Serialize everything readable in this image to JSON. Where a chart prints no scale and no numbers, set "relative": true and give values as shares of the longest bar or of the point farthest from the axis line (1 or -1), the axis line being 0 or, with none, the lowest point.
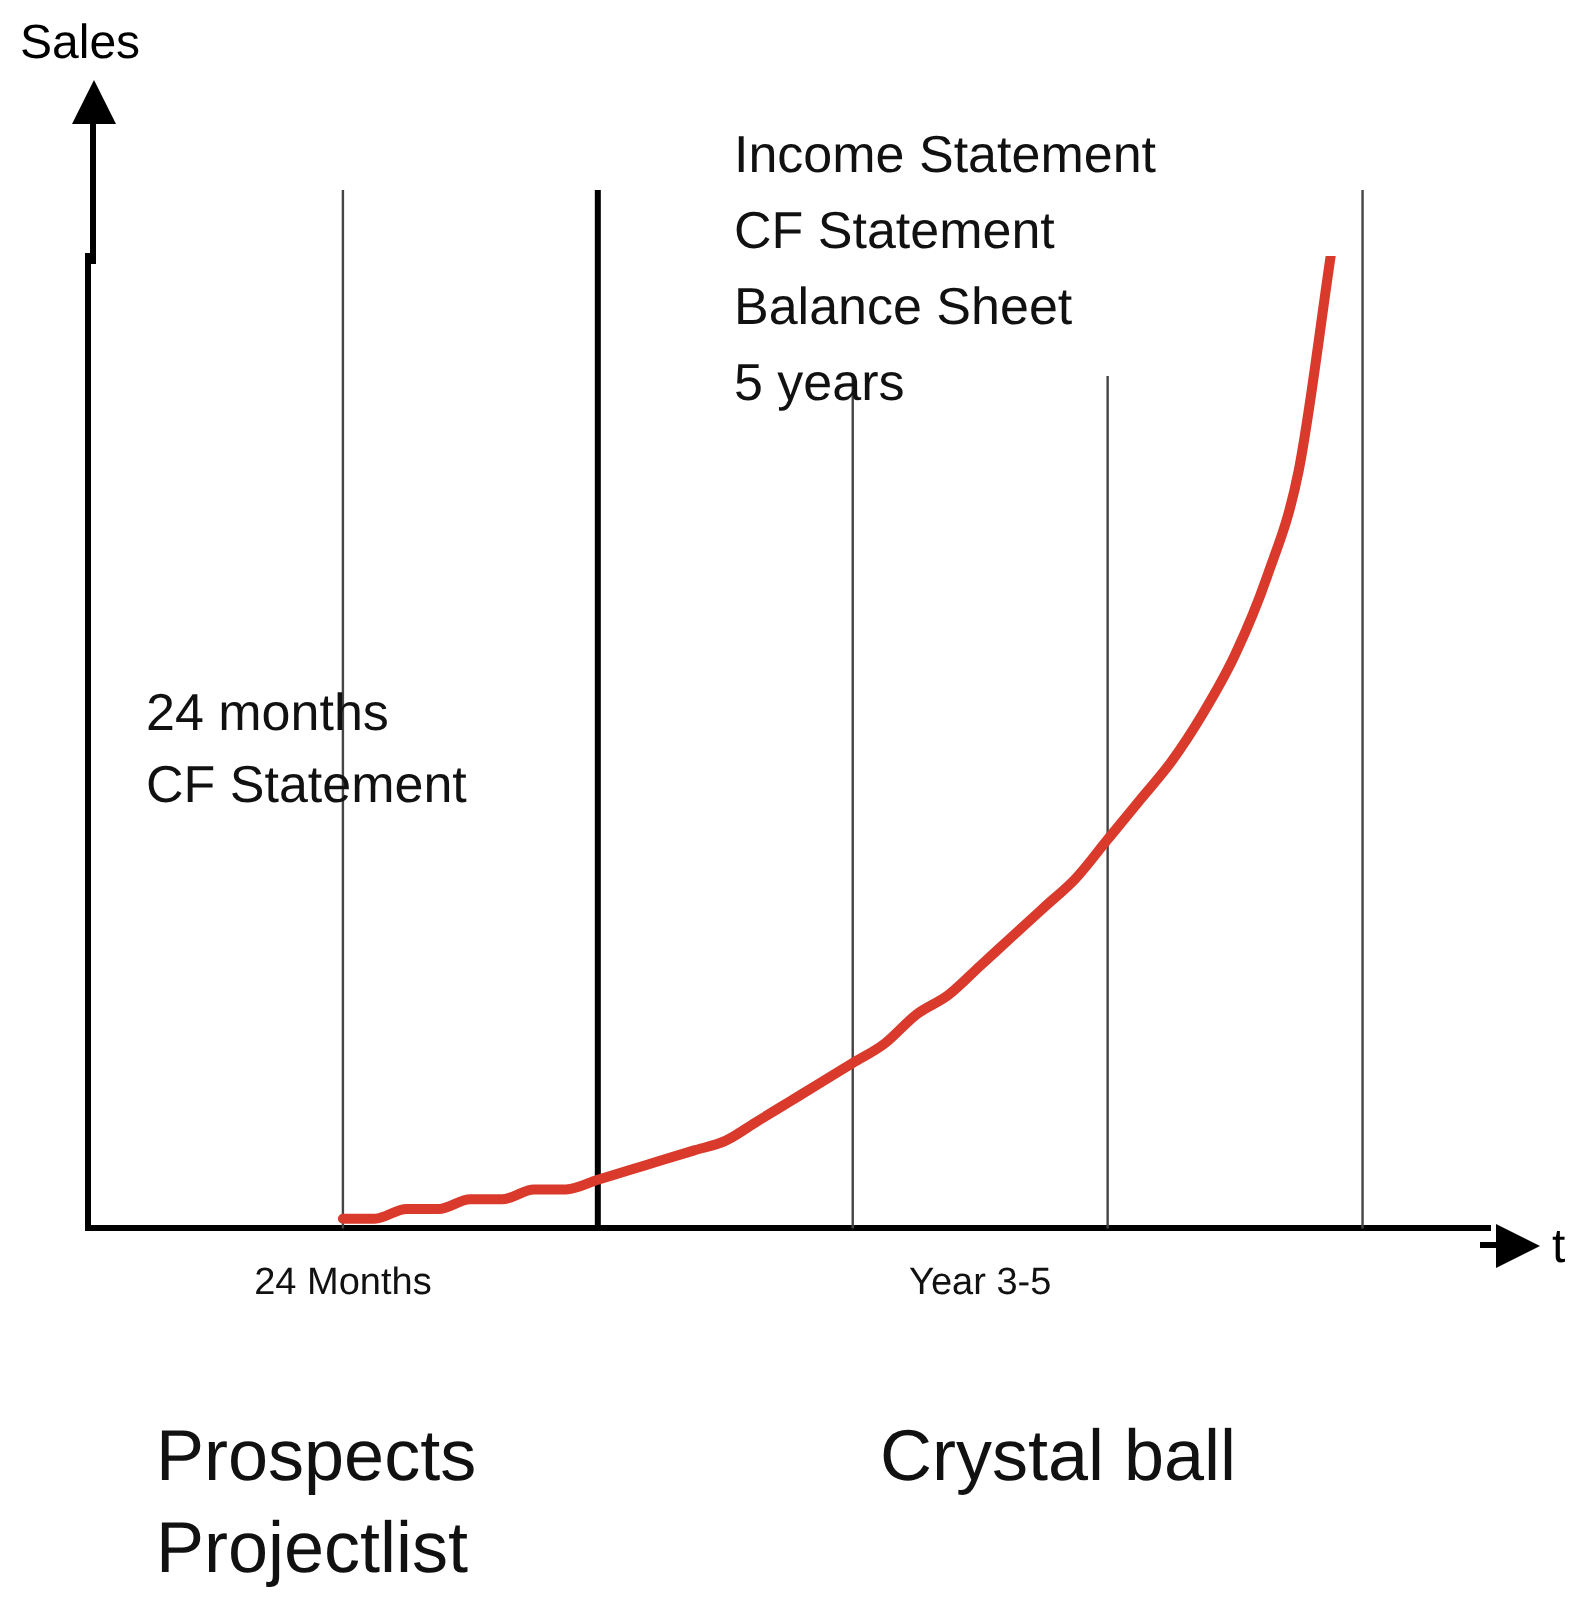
{
  "chart_data": {
    "type": "line",
    "relative": true,
    "ylabel": "Sales",
    "xlabel": "t",
    "categories": [
      null,
      null,
      null,
      null,
      null,
      null,
      null,
      null,
      "24 Months",
      null,
      null,
      null,
      null,
      null,
      null,
      null,
      null,
      null,
      null,
      null,
      null,
      null,
      null,
      null,
      null,
      null,
      null,
      null,
      "Year 3-5",
      null,
      null,
      null,
      null,
      null,
      null,
      null,
      null,
      null,
      null,
      null,
      null,
      null,
      null,
      null,
      null
    ],
    "series": [
      {
        "color": "#d93a2b",
        "values": [
          null,
          null,
          null,
          null,
          null,
          null,
          null,
          null,
          0.01,
          0.01,
          0.02,
          0.02,
          0.03,
          0.03,
          0.04,
          0.04,
          0.05,
          0.06,
          0.07,
          0.08,
          0.09,
          0.11,
          0.13,
          0.15,
          0.17,
          0.19,
          0.22,
          0.24,
          0.27,
          0.3,
          0.33,
          0.36,
          0.4,
          0.44,
          0.48,
          0.53,
          0.59,
          0.67,
          0.78,
          1,
          null,
          null,
          null,
          null,
          null
        ]
      }
    ],
    "annotations": [
      "Income Statement\nCF Statement\nBalance Sheet\n5 years",
      "24 months\nCF Statement",
      "Prospects\nProjectlist",
      "Crystal ball"
    ],
    "grid": "x",
    "legend": false,
    "marker": "none",
    "line_style": "solid"
  }
}
